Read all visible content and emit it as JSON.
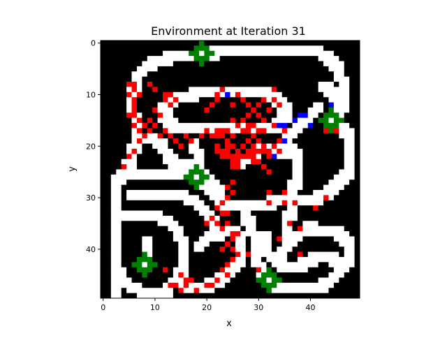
{
  "chart_data": {
    "type": "heatmap",
    "title": "Environment at Iteration 31",
    "xlabel": "x",
    "ylabel": "y",
    "xlim": [
      -0.5,
      49.5
    ],
    "ylim": [
      49.5,
      -0.5
    ],
    "y_axis_inverted": true,
    "grid": false,
    "legend": "none",
    "x_ticks": [
      0,
      10,
      20,
      30,
      40
    ],
    "y_ticks": [
      0,
      10,
      20,
      30,
      40
    ],
    "x_tick_labels": [
      "0",
      "10",
      "20",
      "30",
      "40"
    ],
    "y_tick_labels": [
      "0",
      "10",
      "20",
      "30",
      "40"
    ],
    "colors": {
      "empty": "#000000",
      "path": "#ffffff",
      "visited": "#ff0000",
      "agent": "#0000ff",
      "goal": "#008000"
    },
    "paths": [
      [
        [
          20,
          9
        ],
        [
          18,
          9
        ],
        [
          16,
          10
        ],
        [
          14,
          10
        ],
        [
          12,
          11
        ],
        [
          11,
          13
        ],
        [
          12,
          15
        ],
        [
          14,
          16
        ],
        [
          16,
          16
        ],
        [
          18,
          16
        ],
        [
          20,
          16
        ],
        [
          22,
          16
        ],
        [
          24,
          16
        ],
        [
          26,
          16
        ],
        [
          28,
          16
        ],
        [
          30,
          16
        ],
        [
          32,
          16
        ],
        [
          34,
          15
        ],
        [
          35,
          13
        ],
        [
          34,
          11
        ],
        [
          32,
          10
        ],
        [
          30,
          9
        ],
        [
          28,
          9
        ],
        [
          26,
          9
        ],
        [
          24,
          9
        ],
        [
          22,
          9
        ],
        [
          20,
          9
        ]
      ],
      [
        [
          19,
          2
        ],
        [
          22,
          1
        ],
        [
          25,
          1
        ],
        [
          28,
          1
        ],
        [
          31,
          1
        ],
        [
          34,
          1
        ],
        [
          37,
          1
        ],
        [
          40,
          1
        ],
        [
          43,
          2
        ],
        [
          45,
          5
        ],
        [
          46,
          8
        ],
        [
          46,
          11
        ],
        [
          45,
          13
        ]
      ],
      [
        [
          19,
          2
        ],
        [
          16,
          2
        ],
        [
          13,
          2
        ],
        [
          10,
          3
        ],
        [
          8,
          4
        ],
        [
          6,
          6
        ],
        [
          5,
          9
        ],
        [
          5,
          12
        ],
        [
          6,
          15
        ],
        [
          6,
          18
        ],
        [
          5,
          21
        ],
        [
          4,
          24
        ]
      ],
      [
        [
          4,
          24
        ],
        [
          6,
          25
        ],
        [
          9,
          25
        ],
        [
          12,
          25
        ],
        [
          15,
          25
        ],
        [
          18,
          26
        ],
        [
          20,
          28
        ],
        [
          22,
          30
        ],
        [
          24,
          31
        ],
        [
          27,
          31
        ],
        [
          30,
          31
        ],
        [
          33,
          30
        ],
        [
          36,
          30
        ],
        [
          39,
          30
        ],
        [
          42,
          29
        ],
        [
          45,
          27
        ],
        [
          47,
          24
        ],
        [
          47,
          21
        ],
        [
          47,
          18
        ],
        [
          45,
          15
        ]
      ],
      [
        [
          4,
          24
        ],
        [
          2,
          27
        ],
        [
          2,
          30
        ],
        [
          2,
          33
        ],
        [
          2,
          36
        ],
        [
          2,
          39
        ],
        [
          2,
          42
        ],
        [
          3,
          45
        ],
        [
          5,
          47
        ],
        [
          8,
          48
        ],
        [
          11,
          48
        ]
      ],
      [
        [
          6,
          18
        ],
        [
          9,
          18
        ],
        [
          11,
          19
        ],
        [
          12,
          22
        ],
        [
          14,
          23
        ],
        [
          16,
          23
        ],
        [
          18,
          24
        ],
        [
          20,
          26
        ],
        [
          22,
          28
        ]
      ],
      [
        [
          5,
          29
        ],
        [
          8,
          29
        ],
        [
          11,
          29
        ],
        [
          14,
          29
        ],
        [
          17,
          30
        ],
        [
          19,
          32
        ],
        [
          21,
          34
        ],
        [
          22,
          37
        ]
      ],
      [
        [
          3,
          33
        ],
        [
          6,
          33
        ],
        [
          9,
          33
        ],
        [
          12,
          34
        ],
        [
          14,
          36
        ],
        [
          15,
          39
        ],
        [
          15,
          42
        ],
        [
          14,
          45
        ],
        [
          12,
          47
        ],
        [
          11,
          48
        ]
      ],
      [
        [
          18,
          39
        ],
        [
          20,
          37
        ],
        [
          22,
          36
        ],
        [
          24,
          36
        ],
        [
          26,
          37
        ],
        [
          26,
          40
        ],
        [
          25,
          43
        ],
        [
          23,
          45
        ],
        [
          21,
          46
        ],
        [
          19,
          47
        ],
        [
          17,
          47
        ],
        [
          15,
          46
        ],
        [
          15,
          44
        ]
      ],
      [
        [
          26,
          23
        ],
        [
          28,
          21
        ],
        [
          30,
          20
        ],
        [
          32,
          20
        ],
        [
          34,
          20
        ],
        [
          36,
          20
        ],
        [
          37,
          22
        ],
        [
          37,
          25
        ],
        [
          36,
          28
        ],
        [
          36,
          31
        ],
        [
          35,
          34
        ],
        [
          35,
          37
        ]
      ],
      [
        [
          27,
          33
        ],
        [
          28,
          35
        ],
        [
          29,
          38
        ],
        [
          29,
          41
        ],
        [
          30,
          44
        ],
        [
          31,
          46
        ],
        [
          33,
          47
        ],
        [
          35,
          47
        ],
        [
          37,
          47
        ],
        [
          40,
          47
        ],
        [
          43,
          46
        ],
        [
          45,
          44
        ],
        [
          47,
          42
        ],
        [
          47,
          39
        ],
        [
          46,
          37
        ],
        [
          44,
          36
        ],
        [
          42,
          36
        ],
        [
          40,
          36
        ],
        [
          38,
          36
        ]
      ],
      [
        [
          31,
          37
        ],
        [
          31,
          40
        ],
        [
          33,
          42
        ],
        [
          35,
          43
        ],
        [
          37,
          43
        ],
        [
          39,
          42
        ],
        [
          41,
          41
        ],
        [
          43,
          41
        ],
        [
          45,
          42
        ]
      ],
      [
        [
          34,
          40
        ],
        [
          36,
          38
        ],
        [
          38,
          36
        ],
        [
          40,
          35
        ]
      ],
      [
        [
          2,
          45
        ],
        [
          2,
          48
        ]
      ],
      [
        [
          41,
          12
        ],
        [
          39,
          14
        ],
        [
          37,
          16
        ],
        [
          35,
          18
        ],
        [
          34,
          21
        ]
      ],
      [
        [
          18,
          26
        ],
        [
          18,
          22
        ],
        [
          17,
          19
        ]
      ],
      [
        [
          42,
          8
        ],
        [
          44,
          9
        ],
        [
          45,
          11
        ]
      ],
      [
        [
          8,
          38
        ],
        [
          8,
          40
        ]
      ]
    ],
    "visited_cells": [
      [
        6,
        8
      ],
      [
        5,
        8
      ],
      [
        6,
        9
      ],
      [
        7,
        10
      ],
      [
        5,
        10
      ],
      [
        6,
        11
      ],
      [
        6,
        12
      ],
      [
        6,
        13
      ],
      [
        5,
        14
      ],
      [
        6,
        14
      ],
      [
        7,
        15
      ],
      [
        6,
        16
      ],
      [
        7,
        17
      ],
      [
        8,
        16
      ],
      [
        8,
        18
      ],
      [
        7,
        19
      ],
      [
        6,
        21
      ],
      [
        5,
        22
      ],
      [
        4,
        24
      ],
      [
        10,
        13
      ],
      [
        11,
        14
      ],
      [
        9,
        15
      ],
      [
        10,
        16
      ],
      [
        12,
        17
      ],
      [
        11,
        18
      ],
      [
        9,
        17
      ],
      [
        12,
        11
      ],
      [
        13,
        12
      ],
      [
        12,
        10
      ],
      [
        10,
        9
      ],
      [
        9,
        8
      ],
      [
        13,
        10
      ],
      [
        14,
        11
      ],
      [
        13,
        18
      ],
      [
        14,
        19
      ],
      [
        15,
        20
      ],
      [
        16,
        18
      ],
      [
        17,
        19
      ],
      [
        19,
        18
      ],
      [
        20,
        17
      ],
      [
        21,
        18
      ],
      [
        22,
        18
      ],
      [
        22,
        17
      ],
      [
        23,
        17
      ],
      [
        23,
        18
      ],
      [
        24,
        17
      ],
      [
        24,
        19
      ],
      [
        25,
        18
      ],
      [
        26,
        16
      ],
      [
        25,
        15
      ],
      [
        27,
        17
      ],
      [
        28,
        17
      ],
      [
        28,
        19
      ],
      [
        29,
        18
      ],
      [
        29,
        20
      ],
      [
        22,
        20
      ],
      [
        22,
        21
      ],
      [
        23,
        21
      ],
      [
        23,
        22
      ],
      [
        24,
        20
      ],
      [
        24,
        21
      ],
      [
        24,
        22
      ],
      [
        25,
        20
      ],
      [
        25,
        22
      ],
      [
        25,
        23
      ],
      [
        26,
        21
      ],
      [
        26,
        22
      ],
      [
        26,
        23
      ],
      [
        27,
        22
      ],
      [
        27,
        20
      ],
      [
        28,
        21
      ],
      [
        28,
        22
      ],
      [
        29,
        21
      ],
      [
        29,
        22
      ],
      [
        29,
        23
      ],
      [
        26,
        24
      ],
      [
        25,
        24
      ],
      [
        30,
        19
      ],
      [
        31,
        20
      ],
      [
        32,
        22
      ],
      [
        31,
        21
      ],
      [
        32,
        21
      ],
      [
        30,
        21
      ],
      [
        33,
        20
      ],
      [
        34,
        21
      ],
      [
        30,
        23
      ],
      [
        31,
        24
      ],
      [
        32,
        25
      ],
      [
        25,
        27
      ],
      [
        24,
        28
      ],
      [
        25,
        29
      ],
      [
        24,
        30
      ],
      [
        23,
        31
      ],
      [
        22,
        32
      ],
      [
        23,
        33
      ],
      [
        24,
        33
      ],
      [
        21,
        34
      ],
      [
        22,
        35
      ],
      [
        20,
        35
      ],
      [
        23,
        36
      ],
      [
        24,
        35
      ],
      [
        25,
        37
      ],
      [
        26,
        37
      ],
      [
        25,
        38
      ],
      [
        24,
        39
      ],
      [
        23,
        40
      ],
      [
        25,
        40
      ],
      [
        26,
        41
      ],
      [
        25,
        42
      ],
      [
        24,
        43
      ],
      [
        23,
        44
      ],
      [
        24,
        45
      ],
      [
        22,
        46
      ],
      [
        21,
        47
      ],
      [
        20,
        47
      ],
      [
        15,
        45
      ],
      [
        16,
        46
      ],
      [
        17,
        46
      ],
      [
        14,
        47
      ],
      [
        13,
        47
      ],
      [
        15,
        48
      ],
      [
        16,
        47
      ],
      [
        18,
        48
      ],
      [
        12,
        44
      ],
      [
        25,
        12
      ],
      [
        26,
        10
      ],
      [
        27,
        11
      ],
      [
        28,
        12
      ],
      [
        28,
        14
      ],
      [
        27,
        15
      ],
      [
        29,
        13
      ],
      [
        30,
        14
      ],
      [
        30,
        12
      ],
      [
        31,
        11
      ],
      [
        32,
        13
      ],
      [
        31,
        15
      ],
      [
        29,
        16
      ],
      [
        28,
        16
      ],
      [
        31,
        17
      ],
      [
        30,
        17
      ],
      [
        33,
        11
      ],
      [
        34,
        12
      ],
      [
        33,
        9
      ],
      [
        35,
        17
      ],
      [
        34,
        19
      ],
      [
        33,
        16
      ],
      [
        21,
        12
      ],
      [
        22,
        11
      ],
      [
        20,
        13
      ],
      [
        23,
        9
      ],
      [
        22,
        10
      ],
      [
        32,
        31
      ],
      [
        35,
        31
      ],
      [
        37,
        31
      ],
      [
        41,
        32
      ],
      [
        43,
        30
      ],
      [
        36,
        35
      ],
      [
        38,
        36
      ],
      [
        34,
        38
      ],
      [
        38,
        41
      ],
      [
        35,
        29
      ],
      [
        32,
        29
      ],
      [
        28,
        41
      ],
      [
        30,
        44
      ],
      [
        44,
        16
      ],
      [
        43,
        17
      ],
      [
        42,
        15
      ],
      [
        45,
        17
      ]
    ],
    "agent_cells": [
      [
        20,
        2
      ],
      [
        24,
        10
      ],
      [
        34,
        16
      ],
      [
        35,
        16
      ],
      [
        37,
        15
      ],
      [
        38,
        14
      ],
      [
        39,
        14
      ],
      [
        40,
        16
      ],
      [
        44,
        12
      ],
      [
        35,
        19
      ],
      [
        33,
        22
      ]
    ],
    "goals": [
      {
        "x": 19,
        "y": 2
      },
      {
        "x": 44,
        "y": 15
      },
      {
        "x": 18,
        "y": 26
      },
      {
        "x": 8,
        "y": 43
      },
      {
        "x": 32,
        "y": 46
      }
    ]
  }
}
